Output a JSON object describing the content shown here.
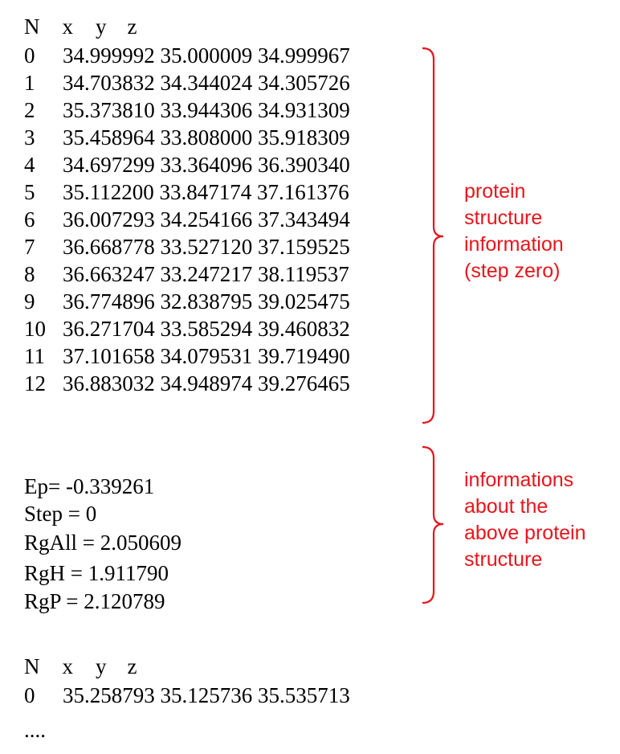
{
  "header1": {
    "n": "N",
    "x": "x",
    "y": "y",
    "z": "z"
  },
  "rows": [
    {
      "n": "0",
      "v": "34.999992 35.000009 34.999967"
    },
    {
      "n": "1",
      "v": "34.703832 34.344024 34.305726"
    },
    {
      "n": "2",
      "v": "35.373810 33.944306 34.931309"
    },
    {
      "n": "3",
      "v": "35.458964 33.808000 35.918309"
    },
    {
      "n": "4",
      "v": "34.697299 33.364096 36.390340"
    },
    {
      "n": "5",
      "v": "35.112200 33.847174 37.161376"
    },
    {
      "n": "6",
      "v": "36.007293 34.254166 37.343494"
    },
    {
      "n": "7",
      "v": "36.668778 33.527120 37.159525"
    },
    {
      "n": "8",
      "v": "36.663247 33.247217 38.119537"
    },
    {
      "n": "9",
      "v": "36.774896 32.838795 39.025475"
    },
    {
      "n": "10",
      "v": "36.271704 33.585294 39.460832"
    },
    {
      "n": "11",
      "v": "37.101658 34.079531 39.719490"
    },
    {
      "n": "12",
      "v": "36.883032 34.948974 39.276465"
    }
  ],
  "stats": [
    "Ep= -0.339261",
    "Step = 0",
    "RgAll = 2.050609",
    "RgH = 1.911790",
    "RgP = 2.120789"
  ],
  "header2": {
    "n": "N",
    "x": "x",
    "y": "y",
    "z": "z"
  },
  "row2": {
    "n": "0",
    "v": "35.258793 35.125736 35.535713"
  },
  "ellipsis": "....",
  "annotation1": [
    "protein",
    "structure",
    "information",
    "(step zero)"
  ],
  "annotation2": [
    "informations",
    "about the",
    "above protein",
    "structure"
  ],
  "colors": {
    "annotation": "#e8141b",
    "text": "#000000"
  }
}
